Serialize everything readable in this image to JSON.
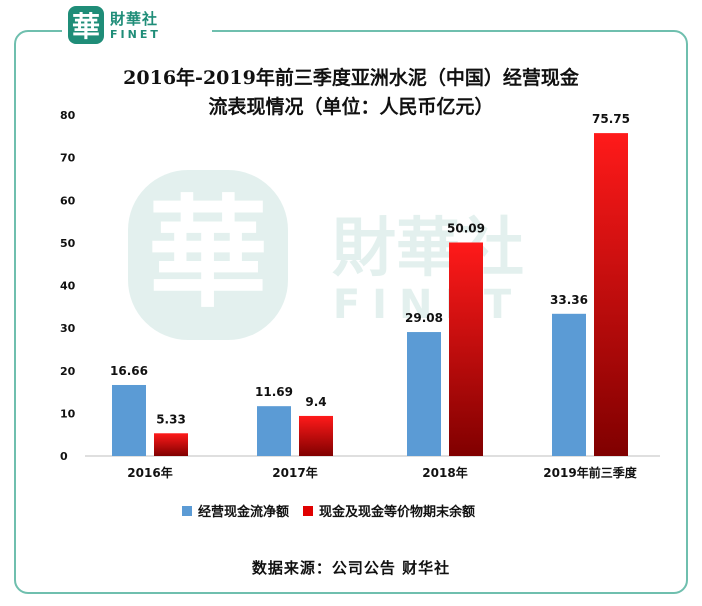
{
  "logo": {
    "mark": "華",
    "cn": "財華社",
    "en": "FINET"
  },
  "watermark": {
    "mark": "華",
    "cn": "財華社",
    "en": "FINET"
  },
  "title_line1": "2016年-2019年前三季度亚洲水泥（中国）经营现金",
  "title_line2": "流表现情况（单位：人民币亿元）",
  "source": "数据来源：公司公告 财华社",
  "colors": {
    "frame": "#6fbfae",
    "blue": "#5b9bd5",
    "red_top": "#ff1a1a",
    "red_bottom": "#800000",
    "brand": "#1f8d78"
  },
  "chart_data": {
    "type": "bar",
    "title": "2016年-2019年前三季度亚洲水泥（中国）经营现金流表现情况（单位：人民币亿元）",
    "categories": [
      "2016年",
      "2017年",
      "2018年",
      "2019年前三季度"
    ],
    "series": [
      {
        "name": "经营现金流净额",
        "values": [
          16.66,
          11.69,
          29.08,
          33.36
        ],
        "labels": [
          "16.66",
          "11.69",
          "29.08",
          "33.36"
        ],
        "color": "#5b9bd5"
      },
      {
        "name": "现金及现金等价物期末余额",
        "values": [
          5.33,
          9.4,
          50.09,
          75.75
        ],
        "labels": [
          "5.33",
          "9.4",
          "50.09",
          "75.75"
        ],
        "color": "#e00000"
      }
    ],
    "ylim": [
      0,
      80
    ],
    "yticks": [
      "0",
      "10",
      "20",
      "30",
      "40",
      "50",
      "60",
      "70",
      "80"
    ],
    "grid": false,
    "legend": "bottom"
  }
}
